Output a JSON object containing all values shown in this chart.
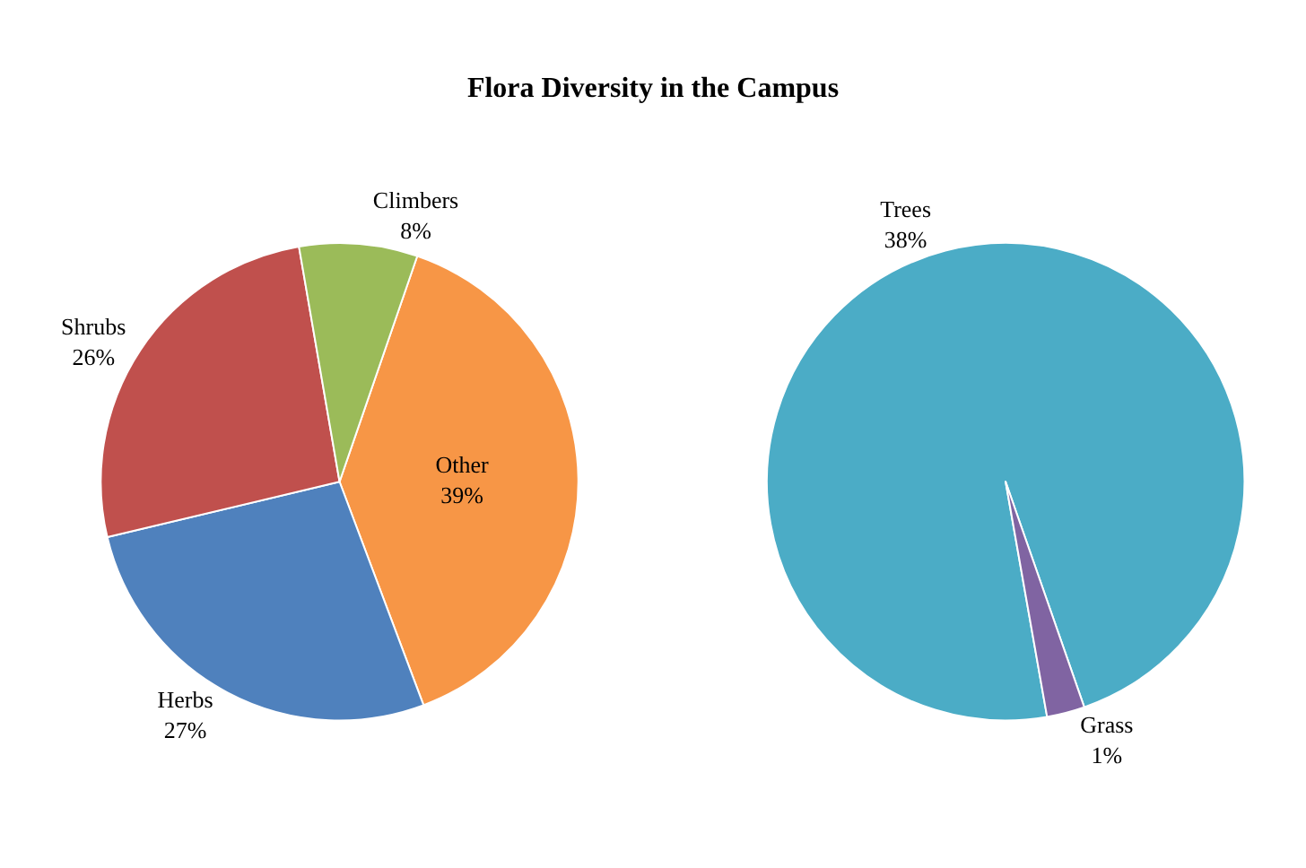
{
  "chart_data": [
    {
      "type": "pie",
      "title": "Flora Diversity in the Campus",
      "categories": [
        "Other",
        "Herbs",
        "Shrubs",
        "Climbers"
      ],
      "values": [
        39,
        27,
        26,
        8
      ],
      "value_labels": [
        "39%",
        "27%",
        "26%",
        "8%"
      ],
      "colors": [
        "#f79646",
        "#4f81bd",
        "#c0504d",
        "#9bbb59"
      ]
    },
    {
      "type": "pie",
      "categories": [
        "Trees",
        "Grass"
      ],
      "values": [
        38,
        1
      ],
      "value_labels": [
        "38%",
        "1%"
      ],
      "colors": [
        "#4bacc6",
        "#8064a2"
      ]
    }
  ]
}
